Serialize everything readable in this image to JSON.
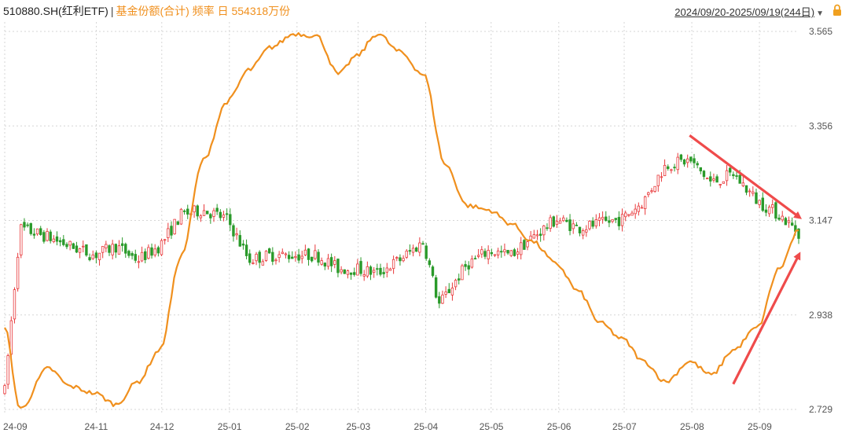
{
  "header": {
    "symbol": "510880.SH(红利ETF)",
    "separator": "|",
    "series_label": "基金份额(合计) 频率 日 554318万份",
    "date_range": "2024/09/20-2025/09/19(244日)",
    "dropdown_icon": "triangle-down-icon",
    "lock_icon": "lock-icon"
  },
  "colors": {
    "up": "#e8393b",
    "down": "#2a9a2a",
    "line": "#f0901e",
    "arrow": "#ef4b4b",
    "grid": "#d6d6d6"
  },
  "chart_data": {
    "type": "line",
    "title": "510880.SH(红利ETF) | 基金份额(合计) 频率 日 554318万份",
    "x_ticks": [
      "24-09",
      "24-11",
      "24-12",
      "25-01",
      "25-02",
      "25-03",
      "25-04",
      "25-05",
      "25-06",
      "25-07",
      "25-08",
      "25-09"
    ],
    "y_ticks": [
      "3.565",
      "3.356",
      "3.147",
      "2.938",
      "2.729"
    ],
    "ylim": [
      2.729,
      3.565
    ],
    "grid": true,
    "series": [
      {
        "name": "基金份额(合计)",
        "kind": "line",
        "x": [
          "2024-09-20",
          "2024-09-27",
          "2024-10-10",
          "2024-10-20",
          "2024-10-31",
          "2024-11-10",
          "2024-11-20",
          "2024-11-30",
          "2024-12-10",
          "2024-12-20",
          "2024-12-31",
          "2025-01-10",
          "2025-01-20",
          "2025-01-31",
          "2025-02-10",
          "2025-02-20",
          "2025-02-28",
          "2025-03-10",
          "2025-03-20",
          "2025-03-31",
          "2025-04-10",
          "2025-04-20",
          "2025-04-30",
          "2025-05-10",
          "2025-05-20",
          "2025-05-31",
          "2025-06-10",
          "2025-06-20",
          "2025-06-30",
          "2025-07-10",
          "2025-07-20",
          "2025-07-31",
          "2025-08-10",
          "2025-08-20",
          "2025-08-31",
          "2025-09-10",
          "2025-09-19"
        ],
        "values": [
          2.91,
          2.73,
          2.82,
          2.78,
          2.765,
          2.74,
          2.79,
          2.86,
          3.07,
          3.28,
          3.41,
          3.48,
          3.53,
          3.56,
          3.555,
          3.47,
          3.51,
          3.56,
          3.52,
          3.47,
          3.27,
          3.18,
          3.17,
          3.14,
          3.1,
          3.05,
          2.99,
          2.92,
          2.885,
          2.835,
          2.79,
          2.835,
          2.805,
          2.86,
          2.91,
          3.04,
          3.125
        ]
      },
      {
        "name": "510880.SH",
        "kind": "candlestick",
        "x": [
          "2024-09-20",
          "2024-09-27",
          "2024-10-10",
          "2024-10-20",
          "2024-10-31",
          "2024-11-10",
          "2024-11-20",
          "2024-11-30",
          "2024-12-10",
          "2024-12-20",
          "2024-12-31",
          "2025-01-10",
          "2025-01-20",
          "2025-01-31",
          "2025-02-10",
          "2025-02-20",
          "2025-02-28",
          "2025-03-10",
          "2025-03-20",
          "2025-03-31",
          "2025-04-07",
          "2025-04-20",
          "2025-04-30",
          "2025-05-10",
          "2025-05-20",
          "2025-05-31",
          "2025-06-10",
          "2025-06-20",
          "2025-06-30",
          "2025-07-10",
          "2025-07-20",
          "2025-07-31",
          "2025-08-10",
          "2025-08-20",
          "2025-08-31",
          "2025-09-10",
          "2025-09-19"
        ],
        "values": [
          2.77,
          3.13,
          3.11,
          3.09,
          3.07,
          3.09,
          3.06,
          3.09,
          3.16,
          3.17,
          3.15,
          3.06,
          3.07,
          3.07,
          3.07,
          3.04,
          3.04,
          3.03,
          3.06,
          3.1,
          2.96,
          3.05,
          3.08,
          3.07,
          3.11,
          3.15,
          3.13,
          3.14,
          3.15,
          3.19,
          3.27,
          3.28,
          3.23,
          3.25,
          3.19,
          3.16,
          3.12
        ]
      }
    ],
    "annotations": [
      {
        "type": "arrow",
        "direction": "down-right",
        "color": "#ef4b4b",
        "from": [
          "2025-07-31",
          3.335
        ],
        "to": [
          "2025-09-19",
          3.155
        ]
      },
      {
        "type": "arrow",
        "direction": "up-right",
        "color": "#ef4b4b",
        "from": [
          "2025-08-20",
          2.785
        ],
        "to": [
          "2025-09-19",
          3.07
        ]
      }
    ]
  }
}
